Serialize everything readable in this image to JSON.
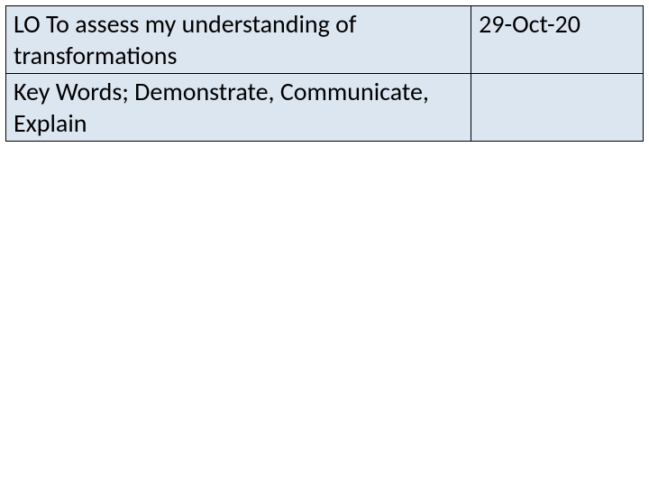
{
  "table": {
    "rows": [
      {
        "left": "LO To assess my understanding of transformations",
        "right": "29-Oct-20"
      },
      {
        "left": "Key Words; Demonstrate, Communicate, Explain",
        "right": ""
      }
    ],
    "background_color": "#dce6f1",
    "border_color": "#000000",
    "font_size": 28,
    "text_color": "#000000",
    "col_left_width": "73%",
    "col_right_width": "27%"
  }
}
